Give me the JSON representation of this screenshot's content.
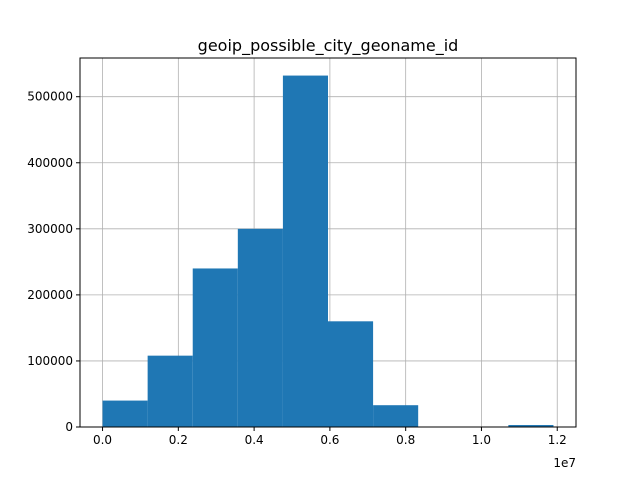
{
  "chart_data": {
    "type": "bar",
    "title": "geoip_possible_city_geoname_id",
    "xlabel": "",
    "ylabel": "",
    "x_offset_label": "1e7",
    "bin_edges": [
      0.0,
      0.119,
      0.238,
      0.357,
      0.476,
      0.595,
      0.714,
      0.833,
      0.952,
      1.071,
      1.19
    ],
    "values": [
      40000,
      108000,
      240000,
      300000,
      532000,
      160000,
      33000,
      0,
      0,
      3000
    ],
    "xlim": [
      -0.0595,
      1.2495
    ],
    "ylim": [
      0,
      558600
    ],
    "xticks": [
      {
        "value": 0.0,
        "label": "0.0"
      },
      {
        "value": 0.2,
        "label": "0.2"
      },
      {
        "value": 0.4,
        "label": "0.4"
      },
      {
        "value": 0.6,
        "label": "0.6"
      },
      {
        "value": 0.8,
        "label": "0.8"
      },
      {
        "value": 1.0,
        "label": "1.0"
      },
      {
        "value": 1.2,
        "label": "1.2"
      }
    ],
    "yticks": [
      {
        "value": 0,
        "label": "0"
      },
      {
        "value": 100000,
        "label": "100000"
      },
      {
        "value": 200000,
        "label": "200000"
      },
      {
        "value": 300000,
        "label": "300000"
      },
      {
        "value": 400000,
        "label": "400000"
      },
      {
        "value": 500000,
        "label": "500000"
      }
    ],
    "grid": true,
    "bar_color": "#1f77b4"
  }
}
